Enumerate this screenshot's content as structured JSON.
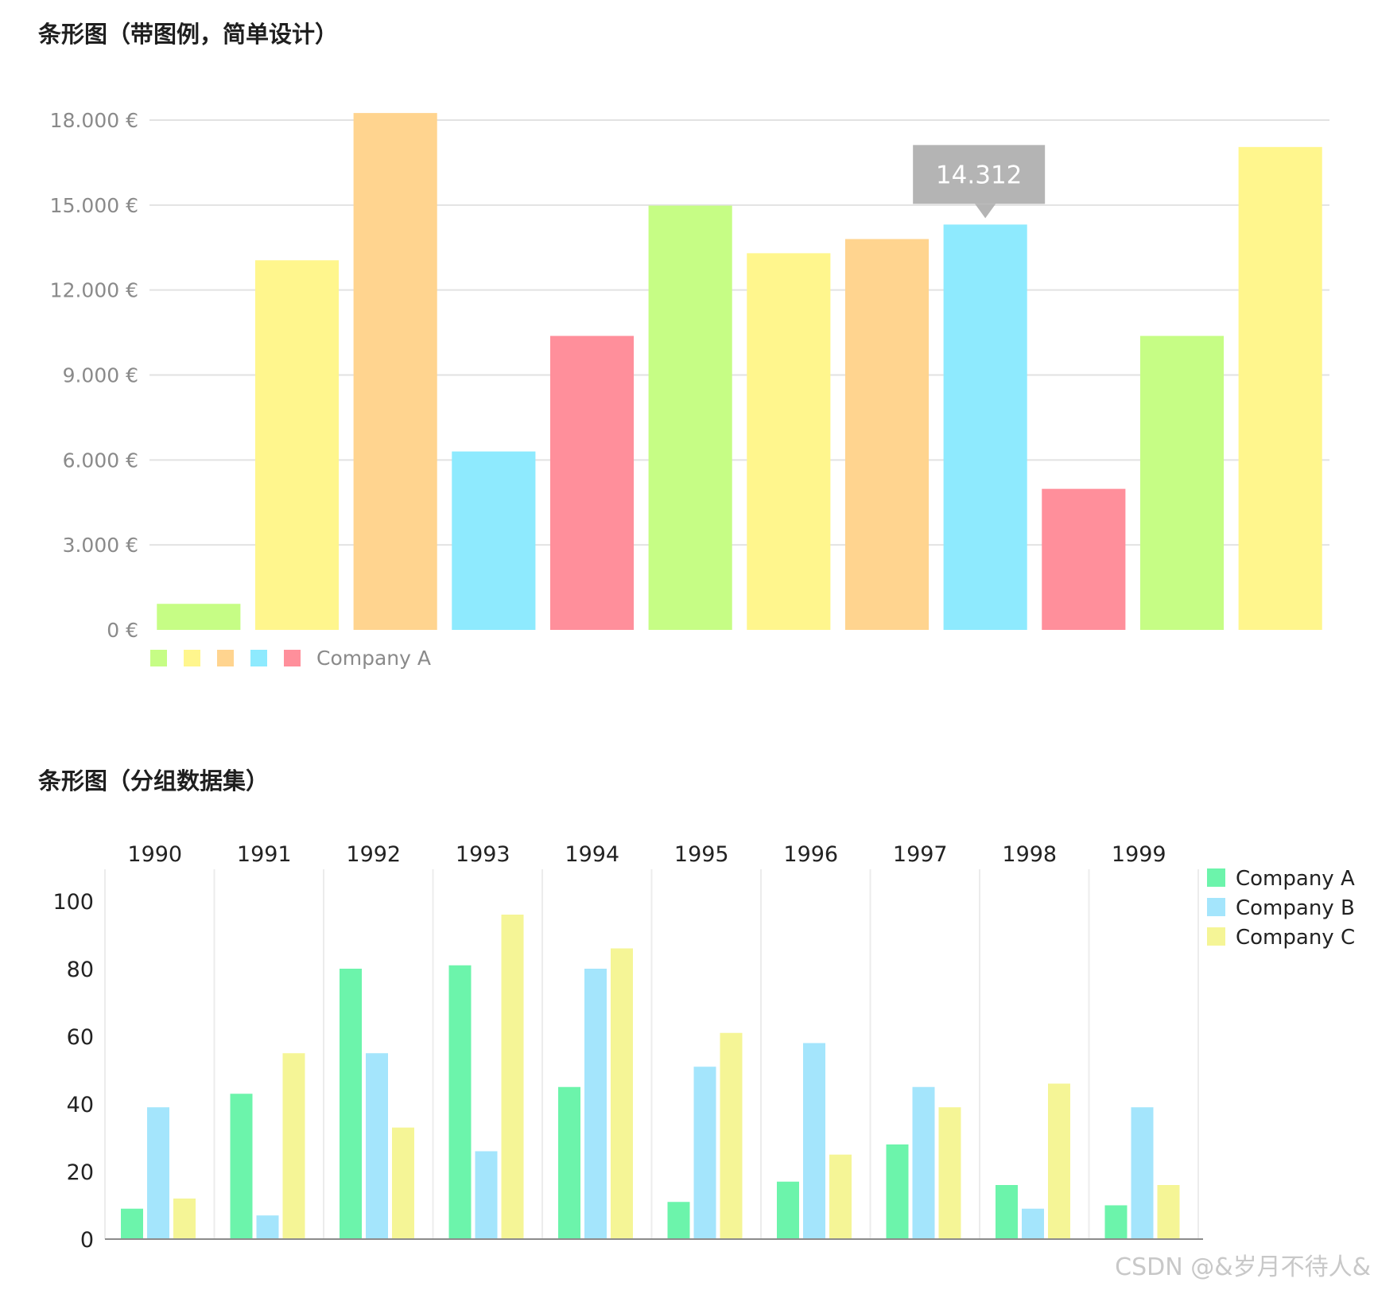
{
  "chart_data": [
    {
      "type": "bar",
      "title": "条形图（带图例，简单设计）",
      "categories": [
        "",
        "",
        "",
        "",
        "",
        "",
        "",
        "",
        "",
        "",
        "",
        ""
      ],
      "values": [
        920,
        13050,
        18250,
        6300,
        10380,
        14980,
        13300,
        13800,
        14312,
        4980,
        10380,
        17050
      ],
      "colors": [
        "#c6fd85",
        "#fff68d",
        "#ffd48f",
        "#8eeafe",
        "#ff8f9b",
        "#c6fd85",
        "#fff68d",
        "#ffd48f",
        "#8eeafe",
        "#ff8f9b",
        "#c6fd85",
        "#fff68d"
      ],
      "ylim": [
        0,
        18000
      ],
      "yticks": [
        0,
        3000,
        6000,
        9000,
        12000,
        15000,
        18000
      ],
      "ytick_labels": [
        "0 €",
        "3.000 €",
        "6.000 €",
        "9.000 €",
        "12.000 €",
        "15.000 €",
        "18.000 €"
      ],
      "xlabel": "",
      "ylabel": "",
      "grid": true,
      "legend": {
        "position": "bottom-left",
        "swatches": [
          "#c6fd85",
          "#fff68d",
          "#ffd48f",
          "#8eeafe",
          "#ff8f9b"
        ],
        "label": "Company A"
      },
      "tooltip": {
        "index": 8,
        "text": "14.312"
      }
    },
    {
      "type": "bar",
      "title": "条形图（分组数据集）",
      "categories": [
        "1990",
        "1991",
        "1992",
        "1993",
        "1994",
        "1995",
        "1996",
        "1997",
        "1998",
        "1999"
      ],
      "series": [
        {
          "name": "Company A",
          "color": "#6cf4ab",
          "values": [
            9,
            43,
            80,
            81,
            45,
            11,
            17,
            28,
            16,
            10
          ]
        },
        {
          "name": "Company B",
          "color": "#a4e5fc",
          "values": [
            39,
            7,
            55,
            26,
            80,
            51,
            58,
            45,
            9,
            39
          ]
        },
        {
          "name": "Company C",
          "color": "#f5f596",
          "values": [
            12,
            55,
            33,
            96,
            86,
            61,
            25,
            39,
            46,
            16
          ]
        }
      ],
      "ylim": [
        0,
        100
      ],
      "yticks": [
        0,
        20,
        40,
        60,
        80,
        100
      ],
      "ytick_labels": [
        "0",
        "20",
        "40",
        "60",
        "80",
        "100"
      ],
      "xaxis_position": "top",
      "xlabel": "",
      "ylabel": "",
      "legend": {
        "position": "top-right"
      }
    }
  ],
  "watermark": "CSDN @&岁月不待人&"
}
